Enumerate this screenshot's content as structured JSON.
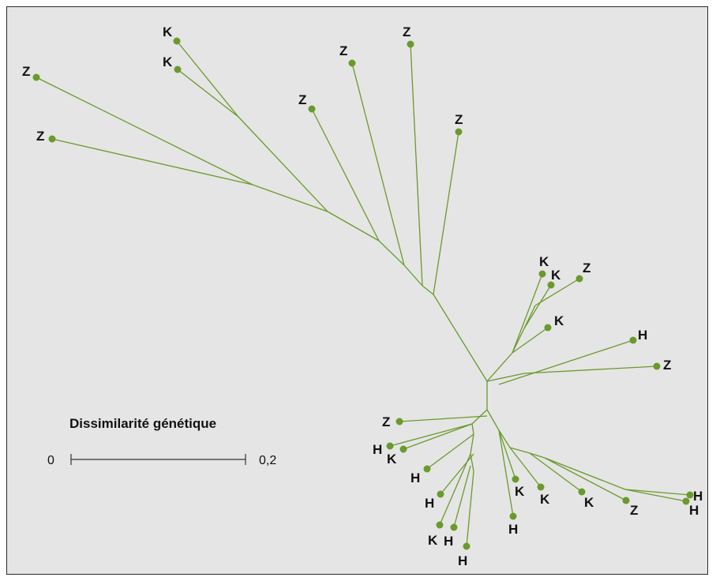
{
  "scale": {
    "title": "Dissimilarité génétique",
    "min_label": "0",
    "max_label": "0,2"
  },
  "tips": [
    {
      "label": "Z"
    },
    {
      "label": "Z"
    },
    {
      "label": "K"
    },
    {
      "label": "K"
    },
    {
      "label": "Z"
    },
    {
      "label": "Z"
    },
    {
      "label": "Z"
    },
    {
      "label": "Z"
    },
    {
      "label": "K"
    },
    {
      "label": "K"
    },
    {
      "label": "Z"
    },
    {
      "label": "K"
    },
    {
      "label": "H"
    },
    {
      "label": "Z"
    },
    {
      "label": "Z"
    },
    {
      "label": "H"
    },
    {
      "label": "K"
    },
    {
      "label": "H"
    },
    {
      "label": "H"
    },
    {
      "label": "K"
    },
    {
      "label": "H"
    },
    {
      "label": "H"
    },
    {
      "label": "H"
    },
    {
      "label": "K"
    },
    {
      "label": "K"
    },
    {
      "label": "K"
    },
    {
      "label": "Z"
    },
    {
      "label": "H"
    },
    {
      "label": "H"
    }
  ],
  "colors": {
    "branch": "#6a9a2c",
    "background": "#e5e5e5",
    "text": "#111111"
  }
}
